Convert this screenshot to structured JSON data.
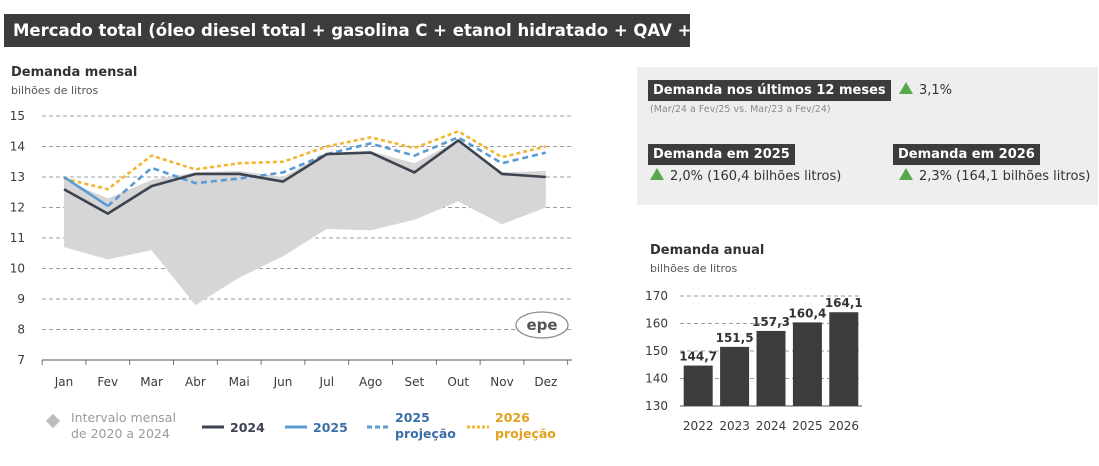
{
  "title": "Mercado total (óleo diesel total + gasolina C + etanol hidratado + QAV + GLP)",
  "colors": {
    "band": "#d6d6d6",
    "s2024": "#3d4350",
    "s2025": "#5b9bd5",
    "s2025p": "#5b9bd5",
    "s2026p": "#f4b52f",
    "growth_up": "#5aa84d",
    "bar": "#3c3c3c"
  },
  "monthly": {
    "title": "Demanda mensal",
    "unit": "bilhões de litros",
    "logo_text": "epe"
  },
  "panel": {
    "last12_label": "Demanda nos últimos 12 meses",
    "last12_value": "3,1%",
    "last12_note": "(Mar/24 a Fev/25 vs. Mar/23 a Fev/24)",
    "d2025_label": "Demanda em 2025",
    "d2025_value": "2,0% (160,4 bilhões litros)",
    "d2026_label": "Demanda em 2026",
    "d2026_value": "2,3% (164,1 bilhões litros)",
    "up_icon": "triangle-up-icon"
  },
  "annual": {
    "title": "Demanda anual",
    "unit": "bilhões de litros"
  },
  "legend": {
    "band_label": "Intervalo mensal\nde 2020 a 2024",
    "s2024": "2024",
    "s2025": "2025",
    "s2025p": "2025\nprojeção",
    "s2026p": "2026\nprojeção"
  },
  "chart_data": [
    {
      "type": "line",
      "title": "Demanda mensal",
      "ylabel": "bilhões de litros",
      "ylim": [
        7,
        15
      ],
      "yticks": [
        7,
        8,
        9,
        10,
        11,
        12,
        13,
        14,
        15
      ],
      "categories": [
        "Jan",
        "Fev",
        "Mar",
        "Abr",
        "Mai",
        "Jun",
        "Jul",
        "Ago",
        "Set",
        "Out",
        "Nov",
        "Dez"
      ],
      "band": {
        "name": "Intervalo mensal de 2020 a 2024",
        "low": [
          10.7,
          10.3,
          10.6,
          8.8,
          9.7,
          10.4,
          11.3,
          11.25,
          11.6,
          12.2,
          11.45,
          12.0
        ],
        "high": [
          12.9,
          12.3,
          12.9,
          13.15,
          13.2,
          13.0,
          13.8,
          13.85,
          13.45,
          14.2,
          13.15,
          13.2
        ]
      },
      "series": [
        {
          "name": "2024",
          "style": "solid",
          "values": [
            12.6,
            11.8,
            12.7,
            13.1,
            13.1,
            12.85,
            13.75,
            13.8,
            13.15,
            14.2,
            13.1,
            13.0
          ]
        },
        {
          "name": "2025",
          "style": "solid",
          "values": [
            13.0,
            12.05,
            null,
            null,
            null,
            null,
            null,
            null,
            null,
            null,
            null,
            null
          ]
        },
        {
          "name": "2025 projeção",
          "style": "dashed",
          "values": [
            null,
            12.05,
            13.3,
            12.8,
            12.95,
            13.15,
            13.75,
            14.1,
            13.7,
            14.3,
            13.45,
            13.8
          ]
        },
        {
          "name": "2026 projeção",
          "style": "dotted",
          "values": [
            12.95,
            12.6,
            13.7,
            13.25,
            13.45,
            13.5,
            14.0,
            14.3,
            13.95,
            14.5,
            13.65,
            14.0
          ]
        }
      ],
      "grid": "horizontal",
      "legend": "bottom"
    },
    {
      "type": "bar",
      "title": "Demanda anual",
      "ylabel": "bilhões de litros",
      "ylim": [
        130,
        170
      ],
      "yticks": [
        130,
        140,
        150,
        160,
        170
      ],
      "categories": [
        "2022",
        "2023",
        "2024",
        "2025",
        "2026"
      ],
      "values": [
        144.7,
        151.5,
        157.3,
        160.4,
        164.1
      ],
      "value_labels": [
        "144,7",
        "151,5",
        "157,3",
        "160,4",
        "164,1"
      ],
      "grid": "horizontal"
    }
  ]
}
